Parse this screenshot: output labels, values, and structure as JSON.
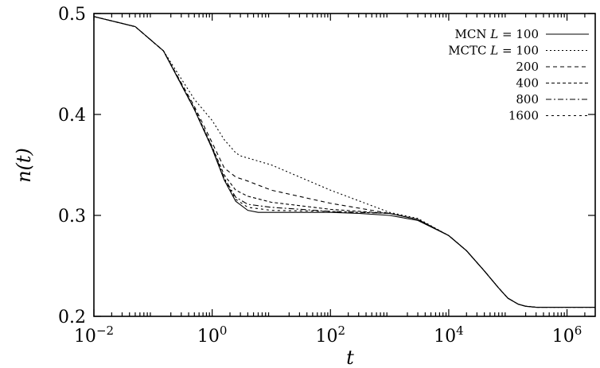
{
  "chart_data": {
    "type": "line",
    "title": "",
    "xlabel": "t",
    "ylabel": "n(t)",
    "xscale": "log",
    "xlim": [
      0.01,
      3000000
    ],
    "ylim": [
      0.2,
      0.5
    ],
    "grid": false,
    "legend_position": "top-right",
    "x_ticks": [
      {
        "value": 0.01,
        "base": "10",
        "exp": "−2"
      },
      {
        "value": 1,
        "base": "10",
        "exp": "0"
      },
      {
        "value": 100,
        "base": "10",
        "exp": "2"
      },
      {
        "value": 10000,
        "base": "10",
        "exp": "4"
      },
      {
        "value": 1000000,
        "base": "10",
        "exp": "6"
      }
    ],
    "y_ticks": [
      {
        "value": 0.2,
        "label": "0.2"
      },
      {
        "value": 0.3,
        "label": "0.3"
      },
      {
        "value": 0.4,
        "label": "0.4"
      },
      {
        "value": 0.5,
        "label": "0.5"
      }
    ],
    "series": [
      {
        "name": "MCN L = 100",
        "legend": {
          "prefix": "MCN ",
          "var": "L",
          "suffix": " = 100"
        },
        "dash": "",
        "x": [
          0.01,
          0.05,
          0.15,
          0.5,
          1.0,
          1.6,
          2.5,
          4,
          6,
          10,
          30,
          100,
          300,
          1000,
          3000,
          10000,
          20000,
          40000,
          70000,
          100000,
          150000,
          200000,
          300000,
          500000,
          1000000,
          3000000
        ],
        "y": [
          0.497,
          0.487,
          0.463,
          0.405,
          0.366,
          0.335,
          0.314,
          0.305,
          0.303,
          0.303,
          0.303,
          0.303,
          0.302,
          0.3,
          0.295,
          0.28,
          0.265,
          0.245,
          0.228,
          0.218,
          0.212,
          0.21,
          0.209,
          0.209,
          0.209,
          0.209
        ]
      },
      {
        "name": "MCTC L = 100",
        "legend": {
          "prefix": "MCTC ",
          "var": "L",
          "suffix": " = 100"
        },
        "dash": "2,3",
        "x": [
          0.01,
          0.05,
          0.15,
          0.5,
          1.0,
          1.6,
          2.5,
          3,
          10,
          100,
          1000,
          3000,
          10000,
          20000,
          40000,
          70000,
          100000,
          150000,
          200000,
          300000,
          1000000,
          3000000
        ],
        "y": [
          0.497,
          0.487,
          0.463,
          0.415,
          0.394,
          0.375,
          0.362,
          0.359,
          0.35,
          0.325,
          0.303,
          0.297,
          0.28,
          0.265,
          0.245,
          0.228,
          0.218,
          0.212,
          0.21,
          0.209,
          0.209,
          0.209
        ]
      },
      {
        "name": "200",
        "legend": {
          "prefix": "200",
          "var": "",
          "suffix": ""
        },
        "dash": "5,4",
        "x": [
          0.01,
          0.05,
          0.15,
          0.5,
          1.0,
          1.6,
          2.5,
          4,
          10,
          100,
          1000,
          3000,
          10000,
          20000,
          40000,
          70000,
          100000,
          150000,
          200000,
          300000,
          1000000,
          3000000
        ],
        "y": [
          0.497,
          0.487,
          0.463,
          0.408,
          0.372,
          0.347,
          0.338,
          0.334,
          0.325,
          0.312,
          0.302,
          0.296,
          0.28,
          0.265,
          0.245,
          0.228,
          0.218,
          0.212,
          0.21,
          0.209,
          0.209,
          0.209
        ]
      },
      {
        "name": "400",
        "legend": {
          "prefix": "400",
          "var": "",
          "suffix": ""
        },
        "dash": "4,3",
        "x": [
          0.01,
          0.05,
          0.15,
          0.5,
          1.0,
          1.6,
          2.5,
          4,
          10,
          100,
          1000,
          3000,
          10000,
          20000,
          40000,
          70000,
          100000,
          150000,
          200000,
          300000,
          1000000,
          3000000
        ],
        "y": [
          0.497,
          0.487,
          0.463,
          0.406,
          0.368,
          0.34,
          0.325,
          0.319,
          0.313,
          0.306,
          0.302,
          0.296,
          0.28,
          0.265,
          0.245,
          0.228,
          0.218,
          0.212,
          0.21,
          0.209,
          0.209,
          0.209
        ]
      },
      {
        "name": "800",
        "legend": {
          "prefix": "800",
          "var": "",
          "suffix": ""
        },
        "dash": "7,3,2,3",
        "x": [
          0.01,
          0.05,
          0.15,
          0.5,
          1.0,
          1.6,
          2.5,
          4,
          10,
          100,
          1000,
          3000,
          10000,
          20000,
          40000,
          70000,
          100000,
          150000,
          200000,
          300000,
          1000000,
          3000000
        ],
        "y": [
          0.497,
          0.487,
          0.463,
          0.405,
          0.367,
          0.337,
          0.318,
          0.311,
          0.308,
          0.304,
          0.302,
          0.296,
          0.28,
          0.265,
          0.245,
          0.228,
          0.218,
          0.212,
          0.21,
          0.209,
          0.209,
          0.209
        ]
      },
      {
        "name": "1600",
        "legend": {
          "prefix": "1600",
          "var": "",
          "suffix": ""
        },
        "dash": "3,4",
        "x": [
          0.01,
          0.05,
          0.15,
          0.5,
          1.0,
          1.6,
          2.5,
          4,
          10,
          100,
          1000,
          3000,
          10000,
          20000,
          40000,
          70000,
          100000,
          150000,
          200000,
          300000,
          1000000,
          3000000
        ],
        "y": [
          0.497,
          0.487,
          0.463,
          0.405,
          0.366,
          0.336,
          0.316,
          0.308,
          0.305,
          0.304,
          0.302,
          0.296,
          0.28,
          0.265,
          0.245,
          0.228,
          0.218,
          0.212,
          0.21,
          0.209,
          0.209,
          0.209
        ]
      }
    ]
  }
}
